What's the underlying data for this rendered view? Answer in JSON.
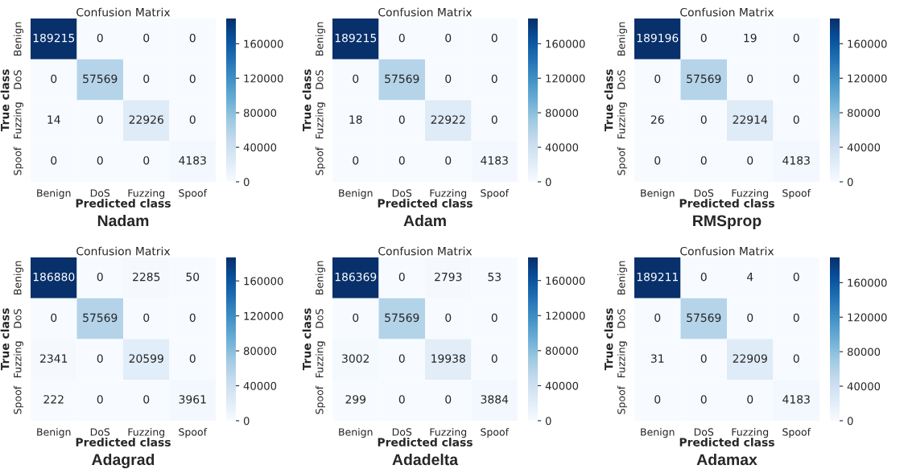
{
  "chart_data": [
    {
      "type": "heatmap",
      "title": "Confusion Matrix",
      "xlabel": "Predicted class",
      "ylabel": "True class",
      "categories": [
        "Benign",
        "DoS",
        "Fuzzing",
        "Spoof"
      ],
      "y_categories": [
        "Benign",
        "DoS",
        "Fuzzing",
        "Spoof"
      ],
      "cells": [
        [
          189215,
          0,
          0,
          0
        ],
        [
          0,
          57569,
          0,
          0
        ],
        [
          14,
          0,
          22926,
          0
        ],
        [
          0,
          0,
          0,
          4183
        ]
      ],
      "data_labels": true,
      "clim": [
        0,
        189215
      ],
      "cticks": [
        0,
        40000,
        80000,
        120000,
        160000
      ],
      "annotations": [
        "Nadam"
      ]
    },
    {
      "type": "heatmap",
      "title": "Confusion Matrix",
      "xlabel": "Predicted class",
      "ylabel": "True class",
      "categories": [
        "Benign",
        "DoS",
        "Fuzzing",
        "Spoof"
      ],
      "y_categories": [
        "Benign",
        "DoS",
        "Fuzzing",
        "Spoof"
      ],
      "cells": [
        [
          189215,
          0,
          0,
          0
        ],
        [
          0,
          57569,
          0,
          0
        ],
        [
          18,
          0,
          22922,
          0
        ],
        [
          0,
          0,
          0,
          4183
        ]
      ],
      "data_labels": true,
      "clim": [
        0,
        189215
      ],
      "cticks": [
        0,
        40000,
        80000,
        120000,
        160000
      ],
      "annotations": [
        "Adam"
      ]
    },
    {
      "type": "heatmap",
      "title": "Confusion Matrix",
      "xlabel": "Predicted class",
      "ylabel": "True class",
      "categories": [
        "Benign",
        "DoS",
        "Fuzzing",
        "Spoof"
      ],
      "y_categories": [
        "Benign",
        "DoS",
        "Fuzzing",
        "Spoof"
      ],
      "cells": [
        [
          189196,
          0,
          19,
          0
        ],
        [
          0,
          57569,
          0,
          0
        ],
        [
          26,
          0,
          22914,
          0
        ],
        [
          0,
          0,
          0,
          4183
        ]
      ],
      "data_labels": true,
      "clim": [
        0,
        189196
      ],
      "cticks": [
        0,
        40000,
        80000,
        120000,
        160000
      ],
      "annotations": [
        "RMSprop"
      ]
    },
    {
      "type": "heatmap",
      "title": "Confusion Matrix",
      "xlabel": "Predicted class",
      "ylabel": "True class",
      "categories": [
        "Benign",
        "DoS",
        "Fuzzing",
        "Spoof"
      ],
      "y_categories": [
        "Benign",
        "DoS",
        "Fuzzing",
        "Spoof"
      ],
      "cells": [
        [
          186880,
          0,
          2285,
          50
        ],
        [
          0,
          57569,
          0,
          0
        ],
        [
          2341,
          0,
          20599,
          0
        ],
        [
          222,
          0,
          0,
          3961
        ]
      ],
      "data_labels": true,
      "clim": [
        0,
        186880
      ],
      "cticks": [
        0,
        40000,
        80000,
        120000,
        160000
      ],
      "annotations": [
        "Adagrad"
      ]
    },
    {
      "type": "heatmap",
      "title": "Confusion Matrix",
      "xlabel": "Predicted class",
      "ylabel": "True class",
      "categories": [
        "Benign",
        "DoS",
        "Fuzzing",
        "Spoof"
      ],
      "y_categories": [
        "Benign",
        "DoS",
        "Fuzzing",
        "Spoof"
      ],
      "cells": [
        [
          186369,
          0,
          2793,
          53
        ],
        [
          0,
          57569,
          0,
          0
        ],
        [
          3002,
          0,
          19938,
          0
        ],
        [
          299,
          0,
          0,
          3884
        ]
      ],
      "data_labels": true,
      "clim": [
        0,
        186369
      ],
      "cticks": [
        0,
        40000,
        80000,
        120000,
        160000
      ],
      "annotations": [
        "Adadelta"
      ]
    },
    {
      "type": "heatmap",
      "title": "Confusion Matrix",
      "xlabel": "Predicted class",
      "ylabel": "True class",
      "categories": [
        "Benign",
        "DoS",
        "Fuzzing",
        "Spoof"
      ],
      "y_categories": [
        "Benign",
        "DoS",
        "Fuzzing",
        "Spoof"
      ],
      "cells": [
        [
          189211,
          0,
          4,
          0
        ],
        [
          0,
          57569,
          0,
          0
        ],
        [
          31,
          0,
          22909,
          0
        ],
        [
          0,
          0,
          0,
          4183
        ]
      ],
      "data_labels": true,
      "clim": [
        0,
        189211
      ],
      "cticks": [
        0,
        40000,
        80000,
        120000,
        160000
      ],
      "annotations": [
        "Adamax"
      ]
    }
  ]
}
